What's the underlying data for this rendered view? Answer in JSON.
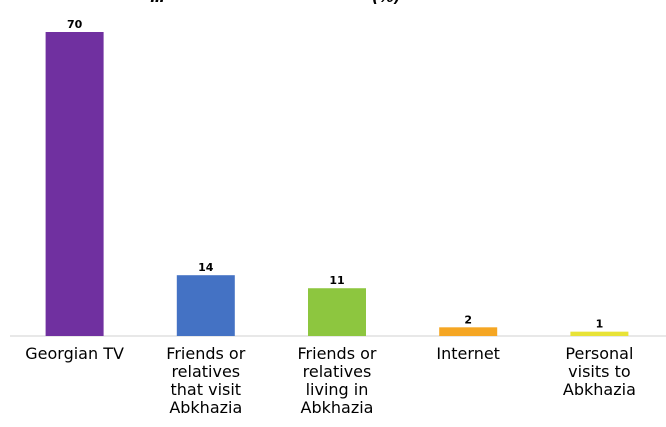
{
  "chart_data": {
    "type": "bar",
    "title_visible_fragment": "…",
    "title_suffix_fragment": "(%)",
    "categories": [
      [
        "Georgian TV"
      ],
      [
        "Friends or",
        "relatives",
        "that visit",
        "Abkhazia"
      ],
      [
        "Friends or",
        "relatives",
        "living in",
        "Abkhazia"
      ],
      [
        "Internet"
      ],
      [
        "Personal",
        "visits to",
        "Abkhazia"
      ]
    ],
    "values": [
      70,
      14,
      11,
      2,
      1
    ],
    "colors": [
      "#7030A0",
      "#4472C4",
      "#8DC63F",
      "#F5A623",
      "#E8E337"
    ],
    "ylim": [
      0,
      70
    ],
    "grid": false,
    "legend": "none"
  }
}
